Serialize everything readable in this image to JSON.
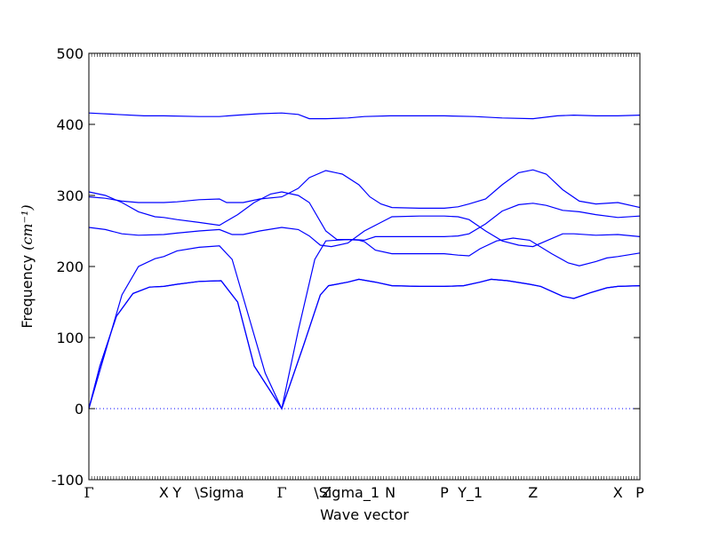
{
  "chart_data": {
    "type": "line",
    "xlabel": "Wave vector",
    "ylabel": "Frequency",
    "ylabel_unit": "(cm⁻¹)",
    "ylim": [
      -100,
      500
    ],
    "xlim": [
      0,
      1
    ],
    "yticks": [
      -100,
      0,
      100,
      200,
      300,
      400,
      500
    ],
    "grid": false,
    "line_color": "#0000ff",
    "zero_line_color": "#0000ff",
    "high_symmetry_points": [
      {
        "label": "Γ",
        "x": 0.0,
        "serif": true
      },
      {
        "label": "X",
        "x": 0.136
      },
      {
        "label": "Y",
        "x": 0.16
      },
      {
        "label": "\\Sigma",
        "x": 0.237
      },
      {
        "label": "Γ",
        "x": 0.35,
        "serif": true
      },
      {
        "label": "Z",
        "x": 0.431
      },
      {
        "label": "\\Sigma_1",
        "x": 0.468
      },
      {
        "label": "N",
        "x": 0.547
      },
      {
        "label": "P",
        "x": 0.645
      },
      {
        "label": "Y_1",
        "x": 0.692
      },
      {
        "label": "Z",
        "x": 0.806
      },
      {
        "label": "X",
        "x": 0.96
      },
      {
        "label": "P",
        "x": 1.0
      }
    ],
    "series": [
      {
        "points": [
          [
            0,
            0
          ],
          [
            0.02,
            60
          ],
          [
            0.05,
            130
          ],
          [
            0.08,
            162
          ],
          [
            0.11,
            171
          ],
          [
            0.136,
            172
          ],
          [
            0.16,
            175
          ],
          [
            0.2,
            179
          ],
          [
            0.24,
            180
          ],
          [
            0.27,
            150
          ],
          [
            0.3,
            60
          ],
          [
            0.35,
            0
          ],
          [
            0.39,
            90
          ],
          [
            0.42,
            160
          ],
          [
            0.435,
            173
          ],
          [
            0.47,
            178
          ],
          [
            0.49,
            182
          ],
          [
            0.52,
            178
          ],
          [
            0.55,
            173
          ],
          [
            0.6,
            172
          ],
          [
            0.645,
            172
          ],
          [
            0.68,
            173
          ],
          [
            0.71,
            178
          ],
          [
            0.73,
            182
          ],
          [
            0.76,
            180
          ],
          [
            0.8,
            175
          ],
          [
            0.82,
            172
          ],
          [
            0.86,
            158
          ],
          [
            0.88,
            155
          ],
          [
            0.91,
            163
          ],
          [
            0.94,
            170
          ],
          [
            0.96,
            172
          ],
          [
            1.0,
            173
          ]
        ]
      },
      {
        "points": [
          [
            0,
            0
          ],
          [
            0.02,
            60
          ],
          [
            0.05,
            130
          ],
          [
            0.08,
            162
          ],
          [
            0.11,
            171
          ],
          [
            0.136,
            172
          ],
          [
            0.16,
            175
          ],
          [
            0.2,
            179
          ],
          [
            0.24,
            180
          ],
          [
            0.27,
            150
          ],
          [
            0.3,
            60
          ],
          [
            0.35,
            0
          ],
          [
            0.39,
            90
          ],
          [
            0.42,
            160
          ],
          [
            0.435,
            173
          ],
          [
            0.47,
            178
          ],
          [
            0.49,
            182
          ],
          [
            0.52,
            178
          ],
          [
            0.55,
            173
          ],
          [
            0.6,
            172
          ],
          [
            0.645,
            172
          ],
          [
            0.68,
            173
          ],
          [
            0.71,
            178
          ],
          [
            0.73,
            182
          ],
          [
            0.76,
            180
          ],
          [
            0.8,
            175
          ],
          [
            0.82,
            172
          ],
          [
            0.86,
            158
          ],
          [
            0.88,
            155
          ],
          [
            0.91,
            163
          ],
          [
            0.94,
            170
          ],
          [
            0.96,
            172
          ],
          [
            1.0,
            173
          ]
        ]
      },
      {
        "points": [
          [
            0,
            0
          ],
          [
            0.03,
            80
          ],
          [
            0.06,
            160
          ],
          [
            0.09,
            200
          ],
          [
            0.12,
            211
          ],
          [
            0.136,
            214
          ],
          [
            0.16,
            222
          ],
          [
            0.2,
            227
          ],
          [
            0.237,
            229
          ],
          [
            0.26,
            210
          ],
          [
            0.29,
            130
          ],
          [
            0.32,
            50
          ],
          [
            0.35,
            0
          ],
          [
            0.38,
            110
          ],
          [
            0.41,
            210
          ],
          [
            0.43,
            236
          ],
          [
            0.47,
            238
          ],
          [
            0.49,
            237
          ],
          [
            0.5,
            235
          ],
          [
            0.52,
            223
          ],
          [
            0.55,
            218
          ],
          [
            0.6,
            218
          ],
          [
            0.645,
            218
          ],
          [
            0.67,
            216
          ],
          [
            0.69,
            215
          ],
          [
            0.71,
            225
          ],
          [
            0.74,
            236
          ],
          [
            0.77,
            240
          ],
          [
            0.8,
            237
          ],
          [
            0.84,
            218
          ],
          [
            0.87,
            205
          ],
          [
            0.89,
            201
          ],
          [
            0.92,
            207
          ],
          [
            0.94,
            212
          ],
          [
            0.96,
            214
          ],
          [
            1.0,
            219
          ]
        ]
      },
      {
        "points": [
          [
            0,
            255
          ],
          [
            0.03,
            252
          ],
          [
            0.06,
            246
          ],
          [
            0.09,
            244
          ],
          [
            0.136,
            245
          ],
          [
            0.16,
            247
          ],
          [
            0.2,
            250
          ],
          [
            0.237,
            252
          ],
          [
            0.26,
            245
          ],
          [
            0.28,
            245
          ],
          [
            0.31,
            250
          ],
          [
            0.35,
            255
          ],
          [
            0.38,
            252
          ],
          [
            0.4,
            243
          ],
          [
            0.42,
            230
          ],
          [
            0.44,
            228
          ],
          [
            0.47,
            233
          ],
          [
            0.5,
            250
          ],
          [
            0.53,
            262
          ],
          [
            0.55,
            270
          ],
          [
            0.6,
            271
          ],
          [
            0.645,
            271
          ],
          [
            0.67,
            270
          ],
          [
            0.69,
            266
          ],
          [
            0.72,
            250
          ],
          [
            0.75,
            236
          ],
          [
            0.78,
            230
          ],
          [
            0.806,
            228
          ],
          [
            0.83,
            236
          ],
          [
            0.86,
            246
          ],
          [
            0.88,
            246
          ],
          [
            0.92,
            244
          ],
          [
            0.96,
            245
          ],
          [
            1.0,
            242
          ]
        ]
      },
      {
        "points": [
          [
            0,
            305
          ],
          [
            0.03,
            300
          ],
          [
            0.06,
            290
          ],
          [
            0.09,
            277
          ],
          [
            0.12,
            270
          ],
          [
            0.136,
            269
          ],
          [
            0.16,
            266
          ],
          [
            0.2,
            262
          ],
          [
            0.237,
            258
          ],
          [
            0.27,
            273
          ],
          [
            0.3,
            290
          ],
          [
            0.33,
            302
          ],
          [
            0.35,
            305
          ],
          [
            0.38,
            300
          ],
          [
            0.4,
            290
          ],
          [
            0.43,
            250
          ],
          [
            0.45,
            238
          ],
          [
            0.48,
            238
          ],
          [
            0.5,
            237
          ],
          [
            0.52,
            242
          ],
          [
            0.55,
            242
          ],
          [
            0.6,
            242
          ],
          [
            0.645,
            242
          ],
          [
            0.67,
            243
          ],
          [
            0.69,
            246
          ],
          [
            0.72,
            260
          ],
          [
            0.75,
            278
          ],
          [
            0.78,
            287
          ],
          [
            0.806,
            289
          ],
          [
            0.83,
            286
          ],
          [
            0.86,
            279
          ],
          [
            0.89,
            277
          ],
          [
            0.92,
            273
          ],
          [
            0.96,
            269
          ],
          [
            1.0,
            271
          ]
        ]
      },
      {
        "points": [
          [
            0,
            298
          ],
          [
            0.03,
            296
          ],
          [
            0.06,
            292
          ],
          [
            0.09,
            290
          ],
          [
            0.136,
            290
          ],
          [
            0.16,
            291
          ],
          [
            0.2,
            294
          ],
          [
            0.237,
            295
          ],
          [
            0.25,
            290
          ],
          [
            0.28,
            290
          ],
          [
            0.31,
            295
          ],
          [
            0.35,
            298
          ],
          [
            0.38,
            310
          ],
          [
            0.4,
            325
          ],
          [
            0.43,
            335
          ],
          [
            0.46,
            330
          ],
          [
            0.49,
            315
          ],
          [
            0.51,
            298
          ],
          [
            0.53,
            288
          ],
          [
            0.55,
            283
          ],
          [
            0.6,
            282
          ],
          [
            0.645,
            282
          ],
          [
            0.67,
            284
          ],
          [
            0.69,
            288
          ],
          [
            0.72,
            295
          ],
          [
            0.75,
            315
          ],
          [
            0.78,
            332
          ],
          [
            0.806,
            336
          ],
          [
            0.83,
            330
          ],
          [
            0.86,
            308
          ],
          [
            0.89,
            292
          ],
          [
            0.92,
            288
          ],
          [
            0.96,
            290
          ],
          [
            1.0,
            283
          ]
        ]
      },
      {
        "points": [
          [
            0,
            416
          ],
          [
            0.05,
            414
          ],
          [
            0.1,
            412
          ],
          [
            0.136,
            412
          ],
          [
            0.2,
            411
          ],
          [
            0.237,
            411
          ],
          [
            0.27,
            413
          ],
          [
            0.31,
            415
          ],
          [
            0.35,
            416
          ],
          [
            0.38,
            414
          ],
          [
            0.4,
            408
          ],
          [
            0.43,
            408
          ],
          [
            0.47,
            409
          ],
          [
            0.5,
            411
          ],
          [
            0.547,
            412
          ],
          [
            0.6,
            412
          ],
          [
            0.645,
            412
          ],
          [
            0.7,
            411
          ],
          [
            0.75,
            409
          ],
          [
            0.806,
            408
          ],
          [
            0.85,
            412
          ],
          [
            0.88,
            413
          ],
          [
            0.92,
            412
          ],
          [
            0.96,
            412
          ],
          [
            1.0,
            413
          ]
        ]
      }
    ]
  }
}
